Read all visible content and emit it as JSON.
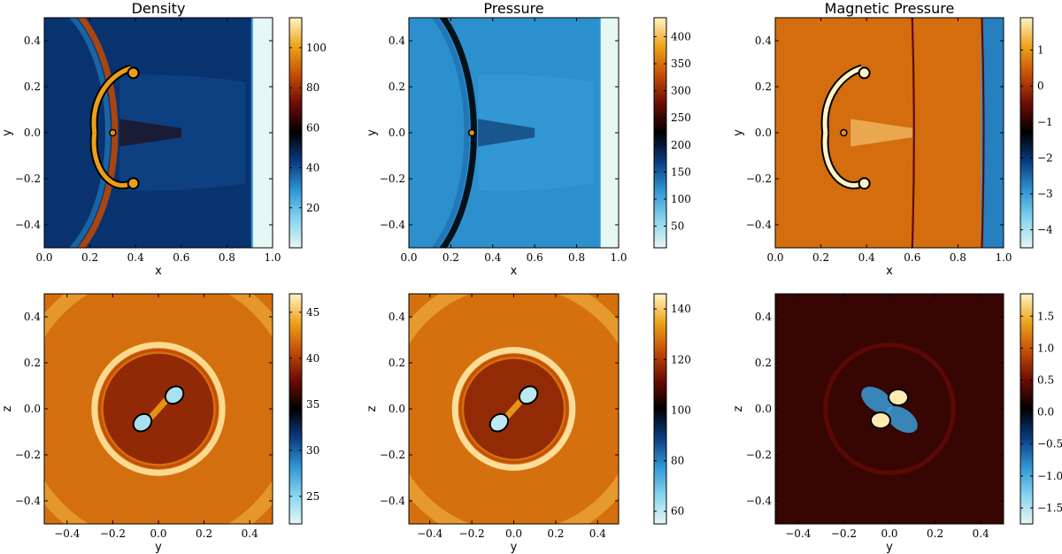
{
  "colormap": {
    "stops": [
      "#e6f7f4",
      "#86d4ef",
      "#2f95d4",
      "#0a3b80",
      "#000000",
      "#6b0c05",
      "#c34d07",
      "#eea21a",
      "#fff4c6"
    ]
  },
  "chart_data": [
    {
      "type": "heatmap",
      "title": "Density",
      "xlabel": "x",
      "ylabel": "y",
      "xlim": [
        0.0,
        1.0
      ],
      "ylim": [
        -0.5,
        0.5
      ],
      "xticks": [
        "0.0",
        "0.2",
        "0.4",
        "0.6",
        "0.8",
        "1.0"
      ],
      "xtick_values": [
        0.0,
        0.2,
        0.4,
        0.6,
        0.8,
        1.0
      ],
      "yticks": [
        "−0.4",
        "−0.2",
        "0.0",
        "0.2",
        "0.4"
      ],
      "ytick_values": [
        -0.4,
        -0.2,
        0.0,
        0.2,
        0.4
      ],
      "colorbar": {
        "min": 0,
        "max": 115,
        "ticks": [
          "20",
          "40",
          "60",
          "80",
          "100"
        ],
        "tick_values": [
          20,
          40,
          60,
          80,
          100
        ]
      },
      "background_value": 45,
      "features": [
        {
          "kind": "band",
          "orientation": "vertical",
          "x_from": 0.91,
          "x_to": 1.0,
          "value": 0
        },
        {
          "kind": "curved-shock",
          "value": 85
        },
        {
          "kind": "jet-cloud",
          "center": [
            0.3,
            0.0
          ],
          "value": 100
        }
      ]
    },
    {
      "type": "heatmap",
      "title": "Pressure",
      "xlabel": "x",
      "ylabel": "y",
      "xlim": [
        0.0,
        1.0
      ],
      "ylim": [
        -0.5,
        0.5
      ],
      "xticks": [
        "0.0",
        "0.2",
        "0.4",
        "0.6",
        "0.8",
        "1.0"
      ],
      "xtick_values": [
        0.0,
        0.2,
        0.4,
        0.6,
        0.8,
        1.0
      ],
      "yticks": [
        "−0.4",
        "−0.2",
        "0.0",
        "0.2",
        "0.4"
      ],
      "ytick_values": [
        -0.4,
        -0.2,
        0.0,
        0.2,
        0.4
      ],
      "colorbar": {
        "min": 10,
        "max": 435,
        "ticks": [
          "50",
          "100",
          "150",
          "200",
          "250",
          "300",
          "350",
          "400"
        ],
        "tick_values": [
          50,
          100,
          150,
          200,
          250,
          300,
          350,
          400
        ]
      },
      "background_value": 120,
      "features": [
        {
          "kind": "band",
          "orientation": "vertical",
          "x_from": 0.91,
          "x_to": 1.0,
          "value": 10
        },
        {
          "kind": "curved-shock",
          "value": 220
        },
        {
          "kind": "hot-spot",
          "center": [
            0.3,
            0.0
          ],
          "value": 330
        }
      ]
    },
    {
      "type": "heatmap",
      "title": "Magnetic Pressure",
      "xlabel": "x",
      "ylabel": "y",
      "xlim": [
        0.0,
        1.0
      ],
      "ylim": [
        -0.5,
        0.5
      ],
      "xticks": [
        "0.0",
        "0.2",
        "0.4",
        "0.6",
        "0.8",
        "1.0"
      ],
      "xtick_values": [
        0.0,
        0.2,
        0.4,
        0.6,
        0.8,
        1.0
      ],
      "yticks": [
        "−0.4",
        "−0.2",
        "0.0",
        "0.2",
        "0.4"
      ],
      "ytick_values": [
        -0.4,
        -0.2,
        0.0,
        0.2,
        0.4
      ],
      "colorbar": {
        "min": -4.5,
        "max": 1.9,
        "ticks": [
          "−4",
          "−3",
          "−2",
          "−1",
          "0",
          "1"
        ],
        "tick_values": [
          -4,
          -3,
          -2,
          -1,
          0,
          1
        ]
      },
      "background_value": 0.6,
      "features": [
        {
          "kind": "band",
          "orientation": "vertical",
          "x_from": 0.905,
          "x_to": 1.0,
          "value": -2.7
        },
        {
          "kind": "shock-line",
          "x": 0.6,
          "value": -0.6
        },
        {
          "kind": "shock-line",
          "x": 0.905,
          "value": -0.6
        },
        {
          "kind": "jet-cloud",
          "center": [
            0.3,
            0.0
          ],
          "value": 1.9
        }
      ]
    },
    {
      "type": "heatmap",
      "title": "",
      "xlabel": "y",
      "ylabel": "z",
      "xlim": [
        -0.5,
        0.5
      ],
      "ylim": [
        -0.5,
        0.5
      ],
      "xticks": [
        "−0.4",
        "−0.2",
        "0.0",
        "0.2",
        "0.4"
      ],
      "xtick_values": [
        -0.4,
        -0.2,
        0.0,
        0.2,
        0.4
      ],
      "yticks": [
        "−0.4",
        "−0.2",
        "0.0",
        "0.2",
        "0.4"
      ],
      "ytick_values": [
        -0.4,
        -0.2,
        0.0,
        0.2,
        0.4
      ],
      "colorbar": {
        "min": 22,
        "max": 47,
        "ticks": [
          "25",
          "30",
          "35",
          "40",
          "45"
        ],
        "tick_values": [
          25,
          30,
          35,
          40,
          45
        ]
      },
      "background_value": 42,
      "features": [
        {
          "kind": "ring",
          "center": [
            0.0,
            0.0
          ],
          "radius": 0.28,
          "value": 46
        },
        {
          "kind": "lobe-pair",
          "center": [
            0.0,
            0.0
          ],
          "value": 24
        }
      ]
    },
    {
      "type": "heatmap",
      "title": "",
      "xlabel": "y",
      "ylabel": "z",
      "xlim": [
        -0.5,
        0.5
      ],
      "ylim": [
        -0.5,
        0.5
      ],
      "xticks": [
        "−0.4",
        "−0.2",
        "0.0",
        "0.2",
        "0.4"
      ],
      "xtick_values": [
        -0.4,
        -0.2,
        0.0,
        0.2,
        0.4
      ],
      "yticks": [
        "−0.4",
        "−0.2",
        "0.0",
        "0.2",
        "0.4"
      ],
      "ytick_values": [
        -0.4,
        -0.2,
        0.0,
        0.2,
        0.4
      ],
      "colorbar": {
        "min": 55,
        "max": 146,
        "ticks": [
          "60",
          "80",
          "100",
          "120",
          "140"
        ],
        "tick_values": [
          60,
          80,
          100,
          120,
          140
        ]
      },
      "background_value": 128,
      "features": [
        {
          "kind": "ring",
          "center": [
            0.0,
            0.0
          ],
          "radius": 0.28,
          "value": 143
        },
        {
          "kind": "lobe-pair",
          "center": [
            0.0,
            0.0
          ],
          "value": 60
        }
      ]
    },
    {
      "type": "heatmap",
      "title": "",
      "xlabel": "y",
      "ylabel": "z",
      "xlim": [
        -0.5,
        0.5
      ],
      "ylim": [
        -0.5,
        0.5
      ],
      "xticks": [
        "−0.4",
        "−0.2",
        "0.0",
        "0.2",
        "0.4"
      ],
      "xtick_values": [
        -0.4,
        -0.2,
        0.0,
        0.2,
        0.4
      ],
      "yticks": [
        "−0.4",
        "−0.2",
        "0.0",
        "0.2",
        "0.4"
      ],
      "ytick_values": [
        -0.4,
        -0.2,
        0.0,
        0.2,
        0.4
      ],
      "colorbar": {
        "min": -1.75,
        "max": 1.85,
        "ticks": [
          "−1.5",
          "−1.0",
          "−0.5",
          "0.0",
          "0.5",
          "1.0",
          "1.5"
        ],
        "tick_values": [
          -1.5,
          -1.0,
          -0.5,
          0.0,
          0.5,
          1.0,
          1.5
        ]
      },
      "background_value": 0.28,
      "features": [
        {
          "kind": "quadrupole",
          "center": [
            0.0,
            0.0
          ],
          "positive_value": 1.8,
          "negative_value": -0.9
        }
      ]
    }
  ]
}
